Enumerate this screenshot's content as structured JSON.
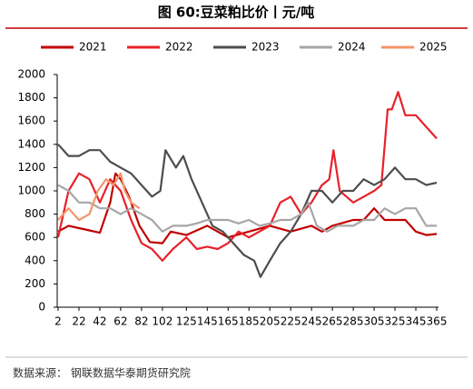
{
  "chart_data": {
    "type": "line",
    "title": "图 60:豆菜粕比价丨元/吨",
    "source": "数据来源： 钢联数据华泰期货研究院",
    "xlim": [
      2,
      365
    ],
    "xticks": [
      2,
      22,
      42,
      62,
      82,
      102,
      125,
      145,
      165,
      185,
      205,
      225,
      245,
      265,
      285,
      305,
      325,
      345,
      365
    ],
    "ylim": [
      0,
      2000
    ],
    "yticks": [
      0,
      200,
      400,
      600,
      800,
      1000,
      1200,
      1400,
      1600,
      1800,
      2000
    ],
    "grid": false,
    "legend": "top",
    "series": [
      {
        "name": "2021",
        "color": "#c00000",
        "x": [
          2,
          12,
          22,
          32,
          42,
          52,
          57,
          62,
          70,
          80,
          90,
          102,
          110,
          125,
          145,
          165,
          185,
          205,
          225,
          245,
          255,
          265,
          285,
          295,
          305,
          315,
          325,
          335,
          345,
          355,
          365
        ],
        "values": [
          650,
          700,
          680,
          660,
          640,
          900,
          1150,
          1100,
          950,
          700,
          560,
          550,
          650,
          620,
          700,
          600,
          650,
          700,
          650,
          700,
          650,
          700,
          750,
          750,
          850,
          750,
          750,
          750,
          650,
          620,
          630
        ]
      },
      {
        "name": "2022",
        "color": "#e8212a",
        "x": [
          2,
          12,
          22,
          32,
          42,
          52,
          62,
          72,
          82,
          92,
          102,
          112,
          125,
          135,
          145,
          155,
          165,
          175,
          185,
          195,
          205,
          215,
          225,
          235,
          245,
          255,
          262,
          266,
          272,
          285,
          295,
          305,
          312,
          318,
          322,
          328,
          335,
          345,
          355,
          365
        ],
        "values": [
          600,
          1000,
          1150,
          1100,
          900,
          1100,
          1000,
          750,
          550,
          500,
          400,
          500,
          600,
          500,
          520,
          500,
          550,
          650,
          600,
          650,
          700,
          900,
          950,
          800,
          900,
          1050,
          1100,
          1350,
          1000,
          900,
          950,
          1000,
          1050,
          1700,
          1700,
          1850,
          1650,
          1650,
          1550,
          1450
        ]
      },
      {
        "name": "2023",
        "color": "#4d4d4d",
        "x": [
          2,
          12,
          22,
          32,
          42,
          52,
          62,
          72,
          82,
          92,
          100,
          105,
          115,
          122,
          130,
          140,
          150,
          160,
          170,
          180,
          190,
          196,
          205,
          215,
          225,
          235,
          245,
          255,
          265,
          275,
          285,
          295,
          305,
          315,
          325,
          335,
          345,
          355,
          365
        ],
        "values": [
          1400,
          1300,
          1300,
          1350,
          1350,
          1250,
          1200,
          1150,
          1050,
          950,
          1000,
          1350,
          1200,
          1300,
          1100,
          900,
          700,
          650,
          550,
          450,
          400,
          260,
          400,
          550,
          650,
          800,
          1000,
          1000,
          900,
          1000,
          1000,
          1100,
          1050,
          1100,
          1200,
          1100,
          1100,
          1050,
          1070
        ]
      },
      {
        "name": "2024",
        "color": "#a6a6a6",
        "x": [
          2,
          12,
          22,
          32,
          42,
          52,
          62,
          72,
          82,
          92,
          102,
          112,
          125,
          135,
          145,
          155,
          165,
          175,
          185,
          195,
          205,
          215,
          225,
          235,
          242,
          250,
          260,
          270,
          285,
          295,
          305,
          315,
          325,
          335,
          345,
          355,
          365
        ],
        "values": [
          1050,
          1000,
          900,
          900,
          850,
          850,
          800,
          850,
          800,
          750,
          650,
          700,
          700,
          720,
          750,
          750,
          750,
          720,
          750,
          700,
          720,
          750,
          750,
          800,
          900,
          700,
          650,
          700,
          700,
          750,
          750,
          850,
          800,
          850,
          850,
          700,
          700
        ]
      },
      {
        "name": "2025",
        "color": "#f4956a",
        "x": [
          2,
          12,
          22,
          32,
          40,
          48,
          55,
          62,
          66,
          72,
          80
        ],
        "values": [
          750,
          850,
          750,
          800,
          1000,
          1100,
          1050,
          1150,
          1000,
          900,
          850
        ]
      }
    ]
  }
}
